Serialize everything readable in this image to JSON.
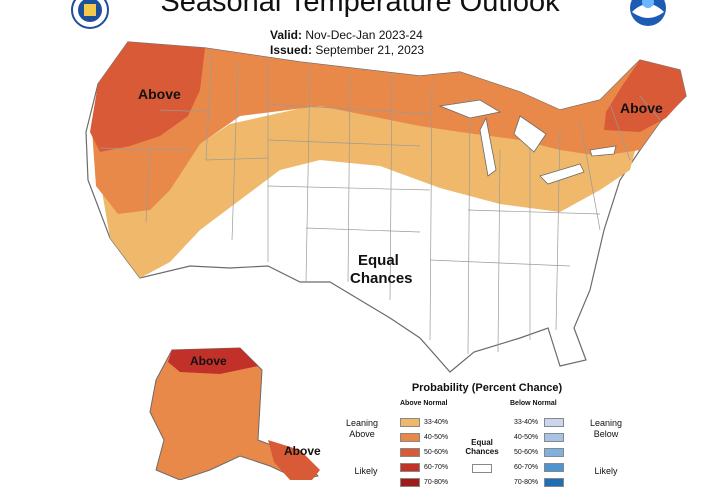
{
  "title": "Seasonal Temperature Outlook",
  "valid_label": "Valid:",
  "valid_value": "Nov-Dec-Jan 2023-24",
  "issued_label": "Issued:",
  "issued_value": "September 21, 2023",
  "map_labels": {
    "above_west": "Above",
    "above_northeast": "Above",
    "equal_chances_line1": "Equal",
    "equal_chances_line2": "Chances",
    "above_alaska_north": "Above",
    "above_alaska_southeast": "Above"
  },
  "legend": {
    "title": "Probability (Percent Chance)",
    "above_header": "Above Normal",
    "below_header": "Below Normal",
    "equal_chances_line1": "Equal",
    "equal_chances_line2": "Chances",
    "leaning_above_line1": "Leaning",
    "leaning_above_line2": "Above",
    "leaning_below_line1": "Leaning",
    "leaning_below_line2": "Below",
    "likely_above": "Likely",
    "likely_below": "Likely",
    "above_ranges": [
      "33-40%",
      "40-50%",
      "50-60%",
      "60-70%",
      "70-80%"
    ],
    "below_ranges": [
      "33-40%",
      "40-50%",
      "50-60%",
      "60-70%",
      "70-80%"
    ]
  },
  "colors": {
    "above_33_40": "#f0b86a",
    "above_40_50": "#e8894a",
    "above_50_60": "#d95a36",
    "above_60_70": "#c2302a",
    "above_70_80": "#9e1c1c",
    "below_33_40": "#c9d6ee",
    "below_40_50": "#a9c3e6",
    "below_50_60": "#7fb0de",
    "below_60_70": "#4e94cf",
    "below_70_80": "#1f6fb5",
    "equal_chances": "#ffffff",
    "state_border": "#9a9a9a"
  },
  "icons": [
    "noaa-logo-icon",
    "nws-logo-icon"
  ]
}
